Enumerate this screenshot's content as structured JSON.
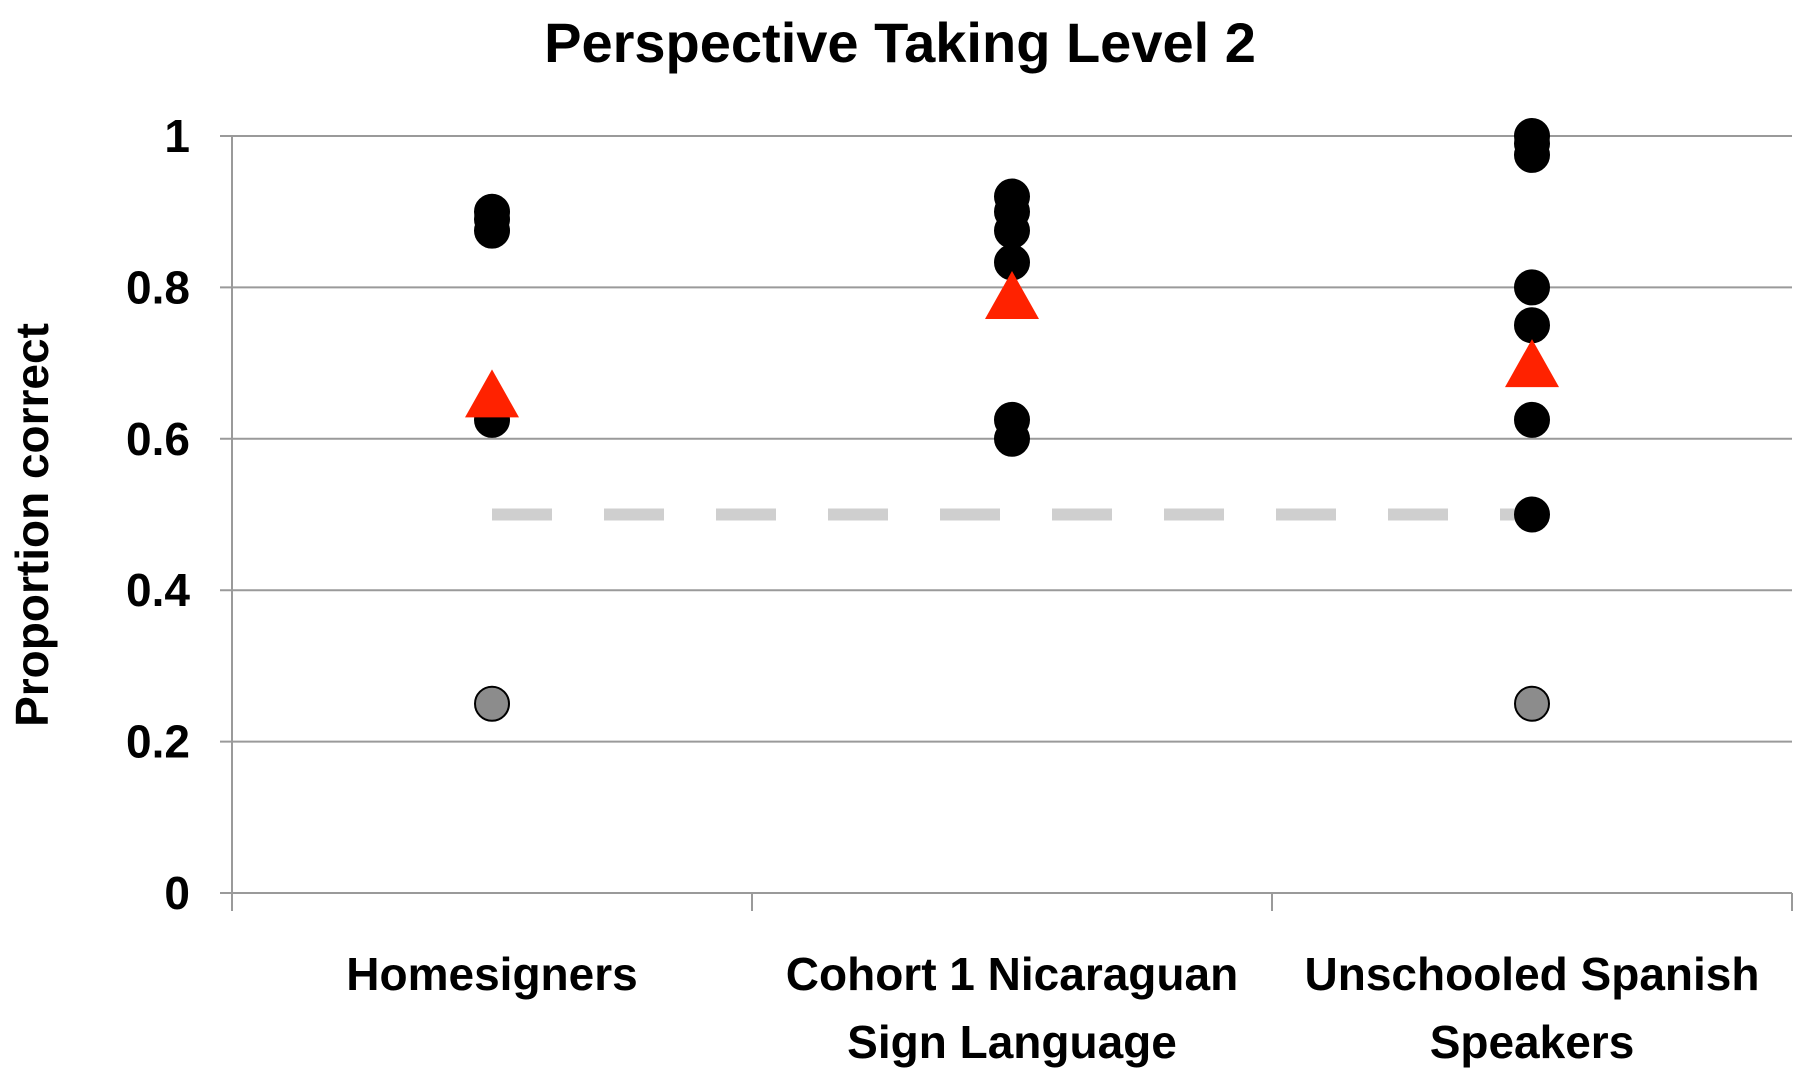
{
  "chart_data": {
    "type": "scatter",
    "title": "Perspective Taking Level 2",
    "xlabel": "",
    "ylabel": "Proportion correct",
    "ylim": [
      0,
      1
    ],
    "yticks": [
      0,
      0.2,
      0.4,
      0.6,
      0.8,
      1
    ],
    "ytick_labels": [
      "0",
      "0.2",
      "0.4",
      "0.6",
      "0.8",
      "1"
    ],
    "grid": true,
    "categories": [
      [
        "Homesigners"
      ],
      [
        "Cohort 1 Nicaraguan",
        "Sign Language"
      ],
      [
        "Unschooled Spanish",
        "Speakers"
      ]
    ],
    "series": [
      {
        "marker": "circle",
        "color": "#000000",
        "points": [
          {
            "category": 0,
            "value": 0.9
          },
          {
            "category": 0,
            "value": 0.89
          },
          {
            "category": 0,
            "value": 0.875
          },
          {
            "category": 0,
            "value": 0.625
          },
          {
            "category": 1,
            "value": 0.92
          },
          {
            "category": 1,
            "value": 0.9
          },
          {
            "category": 1,
            "value": 0.875
          },
          {
            "category": 1,
            "value": 0.833
          },
          {
            "category": 1,
            "value": 0.625
          },
          {
            "category": 1,
            "value": 0.6
          },
          {
            "category": 2,
            "value": 1.0
          },
          {
            "category": 2,
            "value": 0.99
          },
          {
            "category": 2,
            "value": 0.975
          },
          {
            "category": 2,
            "value": 0.8
          },
          {
            "category": 2,
            "value": 0.75
          },
          {
            "category": 2,
            "value": 0.625
          },
          {
            "category": 2,
            "value": 0.5
          }
        ]
      },
      {
        "marker": "circle",
        "color": "#8c8c8c",
        "points": [
          {
            "category": 0,
            "value": 0.25
          },
          {
            "category": 2,
            "value": 0.25
          }
        ]
      },
      {
        "marker": "triangle",
        "color": "#ff2200",
        "points": [
          {
            "category": 0,
            "value": 0.66
          },
          {
            "category": 1,
            "value": 0.79
          },
          {
            "category": 2,
            "value": 0.7
          }
        ]
      }
    ],
    "reference_line": {
      "value": 0.5,
      "style": "dashed",
      "color": "#cfcfcf"
    }
  }
}
